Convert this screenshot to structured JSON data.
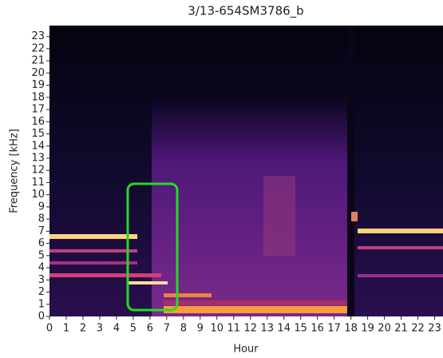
{
  "chart_data": {
    "type": "heatmap",
    "title": "3/13-654SM3786_b",
    "xlabel": "Hour",
    "ylabel": "Frequency [kHz]",
    "xlim": [
      0,
      23.5
    ],
    "ylim": [
      0,
      23.9
    ],
    "xticks": [
      0,
      1,
      2,
      3,
      4,
      5,
      6,
      7,
      8,
      9,
      10,
      11,
      12,
      13,
      14,
      15,
      16,
      17,
      18,
      19,
      20,
      21,
      22,
      23
    ],
    "yticks": [
      0,
      1,
      2,
      3,
      4,
      5,
      6,
      7,
      8,
      9,
      10,
      11,
      12,
      13,
      14,
      15,
      16,
      17,
      18,
      19,
      20,
      21,
      22,
      23
    ]
  }
}
